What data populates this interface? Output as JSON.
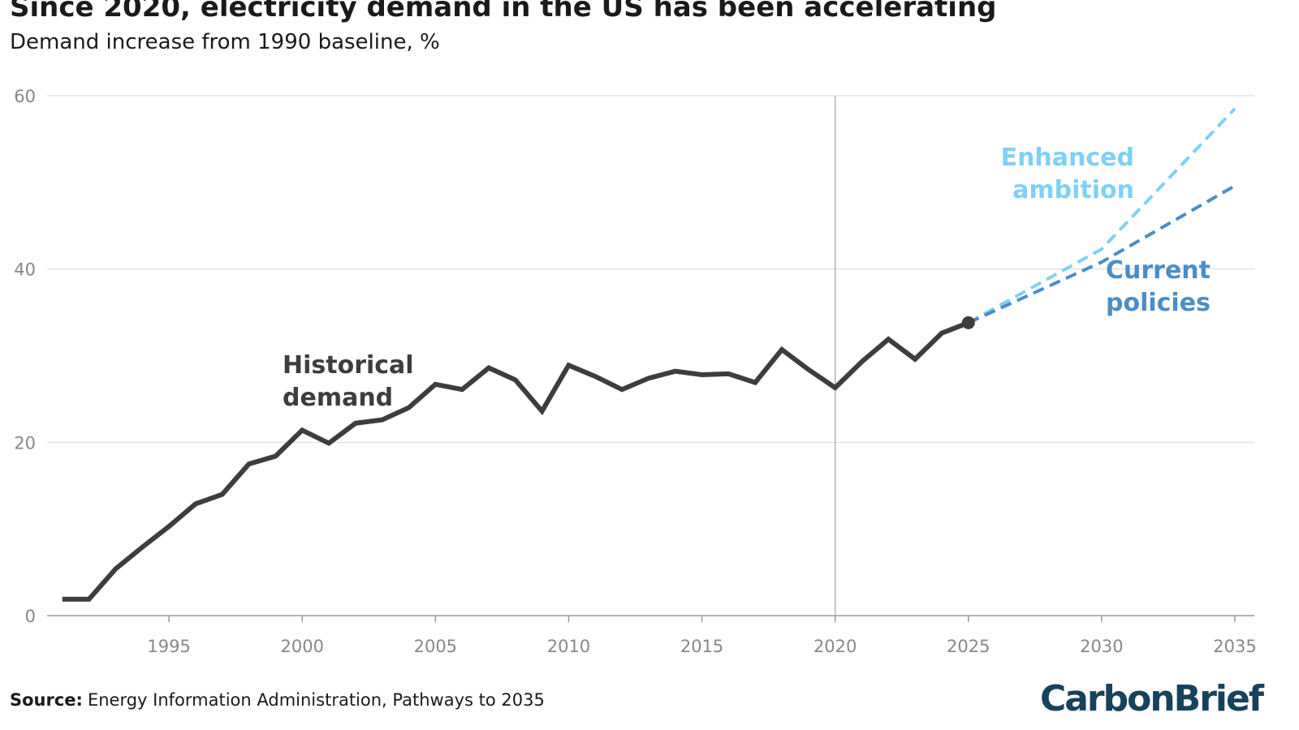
{
  "header": {
    "title": "Since 2020, electricity demand in the US has been accelerating",
    "subtitle": "Demand increase from 1990 baseline, %"
  },
  "footer": {
    "source_label": "Source:",
    "source_text": "Energy Information Administration, Pathways to 2035",
    "brand": "CarbonBrief"
  },
  "colors": {
    "historical": "#3d3d3d",
    "current_policies": "#4a8dc8",
    "enhanced_ambition": "#7fd0f5",
    "grid": "#e3e3e3",
    "axis": "#999999",
    "marker_line": "#b5b5b5",
    "brand": "#16425b"
  },
  "chart_data": {
    "type": "line",
    "title": "Since 2020, electricity demand in the US has been accelerating",
    "subtitle": "Demand increase from 1990 baseline, %",
    "xlabel": "",
    "ylabel": "",
    "xlim": [
      1990,
      2035
    ],
    "ylim": [
      0,
      60
    ],
    "x_ticks": [
      1995,
      2000,
      2005,
      2010,
      2015,
      2020,
      2025,
      2030,
      2035
    ],
    "y_ticks": [
      0,
      20,
      40,
      60
    ],
    "grid": "horizontal",
    "reference_line_x": 2020,
    "series": [
      {
        "id": "historical",
        "name": "Historical demand",
        "label_lines": [
          "Historical",
          "demand"
        ],
        "style": "solid",
        "x": [
          1991,
          1992,
          1993,
          1994,
          1995,
          1996,
          1997,
          1998,
          1999,
          2000,
          2001,
          2002,
          2003,
          2004,
          2005,
          2006,
          2007,
          2008,
          2009,
          2010,
          2011,
          2012,
          2013,
          2014,
          2015,
          2016,
          2017,
          2018,
          2019,
          2020,
          2021,
          2022,
          2023,
          2024,
          2025
        ],
        "values": [
          1.9,
          1.9,
          5.4,
          7.9,
          10.3,
          12.9,
          14.0,
          17.5,
          18.4,
          21.4,
          19.9,
          22.2,
          22.6,
          24.0,
          26.7,
          26.1,
          28.6,
          27.2,
          23.6,
          28.9,
          27.6,
          26.1,
          27.4,
          28.2,
          27.8,
          27.9,
          26.9,
          30.7,
          28.4,
          26.3,
          29.3,
          31.9,
          29.6,
          32.6,
          33.8
        ],
        "end_marker": true
      },
      {
        "id": "current_policies",
        "name": "Current policies",
        "label_lines": [
          "Current",
          "policies"
        ],
        "style": "dashed",
        "x": [
          2025,
          2030,
          2035
        ],
        "values": [
          33.8,
          40.8,
          49.6
        ]
      },
      {
        "id": "enhanced_ambition",
        "name": "Enhanced ambition",
        "label_lines": [
          "Enhanced",
          "ambition"
        ],
        "style": "dashed",
        "x": [
          2025,
          2030,
          2035
        ],
        "values": [
          33.8,
          42.3,
          58.5
        ]
      }
    ]
  }
}
